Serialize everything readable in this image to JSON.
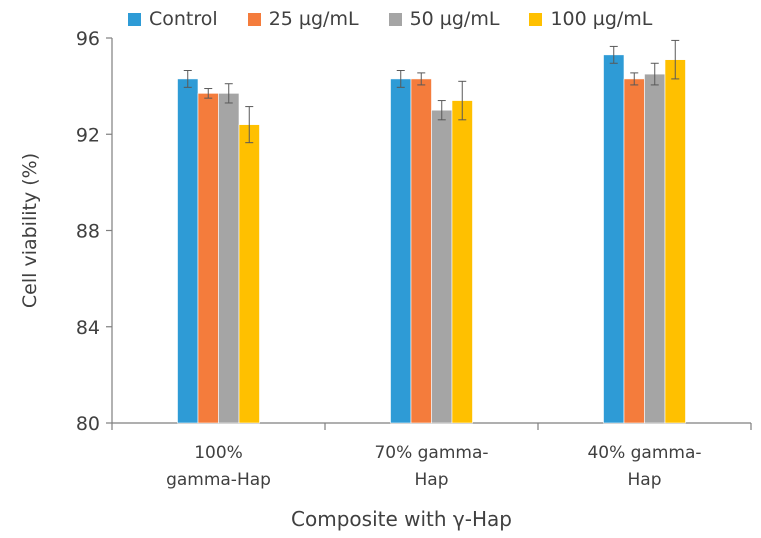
{
  "chart_data": {
    "type": "bar",
    "title": "",
    "xlabel": "Composite with γ-Hap",
    "ylabel": "Cell viability (%)",
    "ylim": [
      80,
      96
    ],
    "yticks": [
      80,
      84,
      88,
      92,
      96
    ],
    "categories": [
      [
        "100%",
        "gamma-Hap"
      ],
      [
        "70% gamma-",
        "Hap"
      ],
      [
        "40% gamma-",
        "Hap"
      ]
    ],
    "series": [
      {
        "name": "Control",
        "color": "#2E9BD6",
        "values": [
          94.3,
          94.3,
          95.3
        ],
        "errors": [
          0.35,
          0.35,
          0.35
        ]
      },
      {
        "name": "25 µg/mL",
        "color": "#F47C3C",
        "values": [
          93.7,
          94.3,
          94.3
        ],
        "errors": [
          0.2,
          0.25,
          0.25
        ]
      },
      {
        "name": "50 µg/mL",
        "color": "#A5A5A5",
        "values": [
          93.7,
          93.0,
          94.5
        ],
        "errors": [
          0.4,
          0.4,
          0.45
        ]
      },
      {
        "name": "100 µg/mL",
        "color": "#FFC000",
        "values": [
          92.4,
          93.4,
          95.1
        ],
        "errors": [
          0.75,
          0.8,
          0.8
        ]
      }
    ],
    "legend_position": "top"
  }
}
